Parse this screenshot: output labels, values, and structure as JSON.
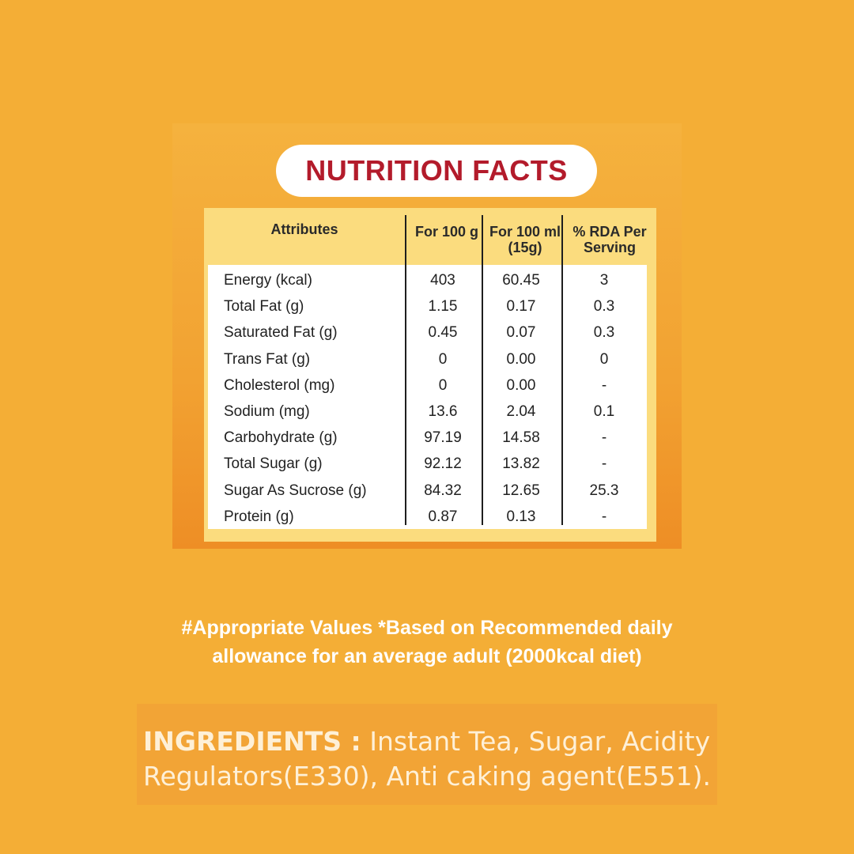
{
  "title": "NUTRITION FACTS",
  "table": {
    "headers": [
      "Attributes",
      "For 100 g",
      "For 100 ml\n(15g)",
      "% RDA Per\nServing"
    ],
    "rows": [
      [
        "Energy (kcal)",
        "403",
        "60.45",
        "3"
      ],
      [
        "Total Fat (g)",
        "1.15",
        "0.17",
        "0.3"
      ],
      [
        "Saturated Fat (g)",
        "0.45",
        "0.07",
        "0.3"
      ],
      [
        "Trans Fat (g)",
        "0",
        "0.00",
        "0"
      ],
      [
        "Cholesterol (mg)",
        "0",
        "0.00",
        "-"
      ],
      [
        "Sodium (mg)",
        "13.6",
        "2.04",
        "0.1"
      ],
      [
        "Carbohydrate (g)",
        "97.19",
        "14.58",
        "-"
      ],
      [
        "Total Sugar (g)",
        "92.12",
        "13.82",
        "-"
      ],
      [
        "Sugar As Sucrose (g)",
        "84.32",
        "12.65",
        "25.3"
      ],
      [
        "Protein (g)",
        "0.87",
        "0.13",
        "-"
      ]
    ]
  },
  "footnote": {
    "line1": "#Appropriate Values *Based on Recommended daily",
    "line2": "allowance for an average adult (2000kcal diet)"
  },
  "ingredients": {
    "label": "INGREDIENTS :",
    "line1": "Instant Tea, Sugar, Acidity",
    "line2": "Regulators(E330), Anti caking agent(E551)."
  },
  "colors": {
    "background": "#F4AE36",
    "title": "#B31B2B",
    "table_header": "#FBDC7E"
  }
}
